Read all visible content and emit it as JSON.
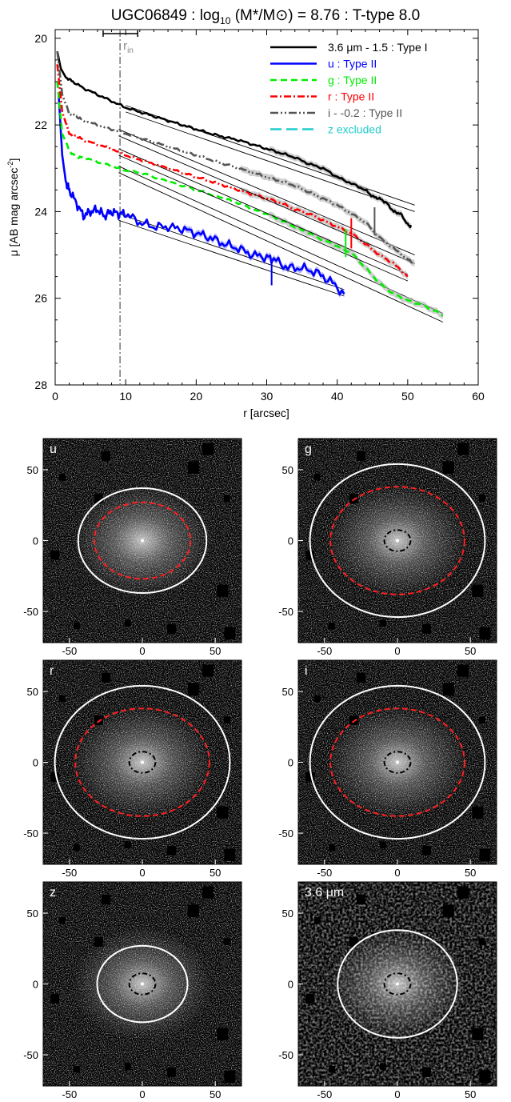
{
  "chart_data": [
    {
      "type": "line",
      "title": "UGC06849 : log10 (M*/M⊙) = 8.76 : T-type 8.0",
      "title_parts": {
        "galaxy": "UGC06849",
        "log": "log",
        "log_sub": "10",
        "mass": "(M*/M⊙)",
        "value": "= 8.76",
        "ttype": ": T-type 8.0"
      },
      "xlabel": "r [arcsec]",
      "ylabel": "μ [AB mag arcsec-2]",
      "ylabel_parts": {
        "main": "μ [AB mag arcsec",
        "sup": "-2",
        "close": "]"
      },
      "xlim": [
        0,
        60
      ],
      "ylim": [
        28,
        19.8
      ],
      "y_inverted": true,
      "x_ticks": [
        0,
        10,
        20,
        30,
        40,
        50,
        60
      ],
      "y_ticks": [
        20,
        22,
        24,
        26,
        28
      ],
      "legend_position": "top-right",
      "rin_label": "r",
      "rin_sub": "in",
      "rin_x": 9.2,
      "rin_errorbar": [
        6.8,
        11.7
      ],
      "series": [
        {
          "name": "3.6 μm - 1.5 : Type I",
          "color": "#000000",
          "dash": "",
          "x": [
            0.3,
            0.8,
            1.5,
            2.5,
            4,
            6,
            8,
            10,
            12,
            14,
            16,
            18,
            20,
            22,
            24,
            26,
            28,
            30,
            32,
            34,
            36,
            38,
            40,
            42,
            44,
            45,
            46,
            47,
            48,
            49,
            50,
            50.5
          ],
          "y": [
            20.3,
            20.7,
            20.9,
            21.0,
            21.15,
            21.3,
            21.45,
            21.6,
            21.7,
            21.8,
            21.9,
            22.0,
            22.1,
            22.2,
            22.28,
            22.35,
            22.45,
            22.55,
            22.65,
            22.75,
            22.9,
            23.0,
            23.2,
            23.35,
            23.5,
            23.65,
            23.7,
            23.8,
            24.0,
            24.05,
            24.3,
            24.35
          ],
          "fits": [
            {
              "x": [
                10,
                51
              ],
              "y": [
                21.55,
                23.85
              ]
            },
            {
              "x": [
                10,
                51
              ],
              "y": [
                21.7,
                24.0
              ]
            }
          ]
        },
        {
          "name": "u : Type II",
          "color": "#0000ff",
          "dash": "",
          "x": [
            0.5,
            1,
            1.5,
            2,
            3,
            4,
            5,
            6,
            7,
            8,
            9,
            10,
            12,
            14,
            16,
            18,
            20,
            22,
            24,
            26,
            28,
            30,
            31,
            33,
            35,
            37,
            39,
            41
          ],
          "y": [
            21.3,
            22.7,
            23.3,
            23.5,
            23.8,
            24.1,
            24.0,
            23.95,
            24.1,
            24.0,
            24.05,
            24.05,
            24.25,
            24.35,
            24.35,
            24.4,
            24.5,
            24.6,
            24.75,
            24.85,
            25.0,
            25.05,
            25.1,
            25.3,
            25.3,
            25.4,
            25.6,
            25.9
          ],
          "fits": [
            {
              "x": [
                9,
                41
              ],
              "y": [
                24.05,
                25.8
              ]
            },
            {
              "x": [
                9,
                41
              ],
              "y": [
                24.2,
                25.95
              ]
            }
          ]
        },
        {
          "name": "g : Type II",
          "color": "#00ee00",
          "dash": "8,5",
          "x": [
            0.3,
            1,
            2,
            3,
            4,
            6,
            8,
            10,
            12,
            14,
            16,
            18,
            20,
            22,
            24,
            26,
            28,
            30,
            32,
            34,
            36,
            38,
            40,
            42,
            44,
            46,
            48,
            50,
            52,
            54,
            55
          ],
          "y": [
            21.0,
            22.2,
            22.6,
            22.75,
            22.75,
            22.85,
            22.95,
            23.05,
            23.1,
            23.2,
            23.3,
            23.4,
            23.5,
            23.6,
            23.7,
            23.8,
            23.95,
            24.05,
            24.2,
            24.35,
            24.5,
            24.65,
            24.8,
            24.95,
            25.3,
            25.65,
            25.9,
            26.05,
            26.15,
            26.3,
            26.4
          ],
          "fits": [
            {
              "x": [
                9,
                55
              ],
              "y": [
                22.95,
                26.35
              ]
            },
            {
              "x": [
                9,
                55
              ],
              "y": [
                23.1,
                26.55
              ]
            }
          ]
        },
        {
          "name": "r : Type II",
          "color": "#ff0000",
          "dash": "9,3,2,3",
          "x": [
            0.3,
            1,
            2,
            3,
            4,
            6,
            8,
            10,
            12,
            14,
            16,
            18,
            20,
            22,
            24,
            26,
            28,
            30,
            32,
            34,
            36,
            38,
            40,
            42,
            44,
            46,
            48,
            50
          ],
          "y": [
            20.6,
            21.7,
            22.2,
            22.25,
            22.35,
            22.45,
            22.55,
            22.7,
            22.8,
            22.9,
            23.0,
            23.1,
            23.2,
            23.3,
            23.4,
            23.5,
            23.6,
            23.7,
            23.8,
            23.95,
            24.05,
            24.2,
            24.35,
            24.5,
            24.75,
            25.0,
            25.2,
            25.5
          ],
          "fits": [
            {
              "x": [
                9,
                50
              ],
              "y": [
                22.55,
                25.45
              ]
            },
            {
              "x": [
                9,
                50
              ],
              "y": [
                22.7,
                25.6
              ]
            }
          ]
        },
        {
          "name": "i - -0.2 : Type II",
          "color": "#555555",
          "dash": "10,3,2,3,2,3",
          "x": [
            0.3,
            1,
            2,
            3,
            4,
            6,
            8,
            10,
            12,
            14,
            16,
            18,
            20,
            22,
            24,
            26,
            28,
            30,
            32,
            34,
            36,
            38,
            40,
            42,
            44,
            46,
            48,
            50,
            51
          ],
          "y": [
            20.3,
            21.3,
            21.75,
            21.8,
            21.9,
            22.0,
            22.1,
            22.2,
            22.3,
            22.4,
            22.5,
            22.6,
            22.7,
            22.8,
            22.9,
            23.0,
            23.1,
            23.2,
            23.3,
            23.4,
            23.55,
            23.7,
            23.85,
            24.05,
            24.25,
            24.6,
            24.85,
            25.1,
            25.2
          ],
          "fits": [
            {
              "x": [
                9,
                51
              ],
              "y": [
                22.1,
                25.0
              ]
            },
            {
              "x": [
                9,
                51
              ],
              "y": [
                22.25,
                25.2
              ]
            }
          ]
        },
        {
          "name": "z excluded",
          "color": "#22cccc",
          "dash": "14,6",
          "x": [],
          "y": [],
          "fits": []
        }
      ],
      "break_markers": [
        {
          "x": 30.7,
          "color": "#0000ff",
          "y": [
            25.1,
            25.7
          ]
        },
        {
          "x": 41.2,
          "color": "#00ee00",
          "y": [
            24.4,
            25.05
          ]
        },
        {
          "x": 42.0,
          "color": "#ff0000",
          "y": [
            24.15,
            24.85
          ]
        },
        {
          "x": 45.3,
          "color": "#555555",
          "y": [
            23.9,
            24.55
          ]
        }
      ]
    },
    {
      "type": "image",
      "panels": [
        {
          "label": "u",
          "ticks_x": [
            -50,
            0,
            50
          ],
          "ticks_y": [
            50,
            0,
            -50
          ],
          "white_ellipse": [
            44,
            37
          ],
          "red_ellipse": [
            33,
            27
          ],
          "inner_ellipse": null,
          "style": "noise"
        },
        {
          "label": "g",
          "ticks_x": [
            -50,
            0,
            50
          ],
          "ticks_y": [
            50,
            0,
            -50
          ],
          "white_ellipse": [
            60,
            54
          ],
          "red_ellipse": [
            46,
            38
          ],
          "inner_ellipse": [
            9,
            7.5
          ],
          "style": "noise"
        },
        {
          "label": "r",
          "ticks_x": [
            -50,
            0,
            50
          ],
          "ticks_y": [
            50,
            0,
            -50
          ],
          "white_ellipse": [
            60,
            54
          ],
          "red_ellipse": [
            46,
            38
          ],
          "inner_ellipse": [
            9,
            7.5
          ],
          "style": "noise"
        },
        {
          "label": "i",
          "ticks_x": [
            -50,
            0,
            50
          ],
          "ticks_y": [
            50,
            0,
            -50
          ],
          "white_ellipse": [
            60,
            54
          ],
          "red_ellipse": [
            46,
            38
          ],
          "inner_ellipse": [
            9,
            7.5
          ],
          "style": "noise"
        },
        {
          "label": "z",
          "ticks_x": [
            -50,
            0,
            50
          ],
          "ticks_y": [
            50,
            0,
            -50
          ],
          "white_ellipse": [
            31,
            27
          ],
          "red_ellipse": null,
          "inner_ellipse": [
            9,
            7.5
          ],
          "style": "noise"
        },
        {
          "label": "3.6 μm",
          "ticks_x": [
            -50,
            0,
            50
          ],
          "ticks_y": [
            50,
            0,
            -50
          ],
          "white_ellipse": [
            41,
            38
          ],
          "red_ellipse": null,
          "inner_ellipse": [
            9,
            7.5
          ],
          "style": "smooth"
        }
      ],
      "xlim": [
        -68,
        68
      ],
      "ylim": [
        -72,
        72
      ]
    }
  ]
}
